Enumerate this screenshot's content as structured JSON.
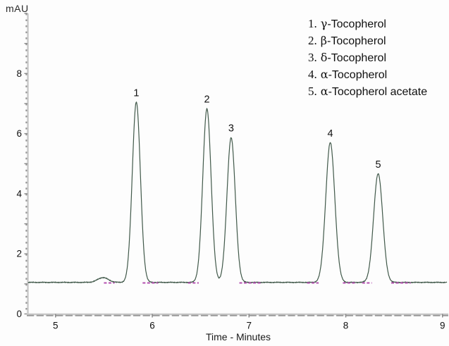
{
  "figure": {
    "y_axis_title": "mAU",
    "x_axis_title": "Time - Minutes"
  },
  "chart_data": {
    "type": "line",
    "chart_kind": "hplc-chromatogram",
    "title": "",
    "xlabel": "Time - Minutes",
    "ylabel": "mAU",
    "xlim": [
      4.71,
      9.06
    ],
    "ylim": [
      0,
      10
    ],
    "x_ticks": [
      5,
      6,
      7,
      8,
      9
    ],
    "x_minor_tick_step": 0.1,
    "y_ticks": [
      0,
      2,
      4,
      6,
      8
    ],
    "y_minor_tick_step": 0.2,
    "grid": "off",
    "legend_position": "top-right",
    "baseline_mau": 1.05,
    "noise_amplitude_mau": 0.02,
    "colors": {
      "trace": "#41594a",
      "integration_mark": "#b44fb0",
      "axis_line": "#c9c9c9",
      "axis_dash": "#9a9a9a",
      "major_tick": "#8a8a8a",
      "text": "#111111"
    },
    "peaks": [
      {
        "number": "1",
        "compound": "γ-Tocopherol",
        "retention_time_min": 5.835,
        "apex_mau": 7.05,
        "sigma_min": 0.042
      },
      {
        "number": "2",
        "compound": "β-Tocopherol",
        "retention_time_min": 6.565,
        "apex_mau": 6.83,
        "sigma_min": 0.043
      },
      {
        "number": "3",
        "compound": "δ-Tocopherol",
        "retention_time_min": 6.815,
        "apex_mau": 5.87,
        "sigma_min": 0.043
      },
      {
        "number": "4",
        "compound": "α-Tocopherol",
        "retention_time_min": 7.84,
        "apex_mau": 5.7,
        "sigma_min": 0.047
      },
      {
        "number": "5",
        "compound": "α-Tocopherol acetate",
        "retention_time_min": 8.335,
        "apex_mau": 4.67,
        "sigma_min": 0.047
      }
    ],
    "unlabeled_bump": {
      "retention_time_min": 5.49,
      "apex_mau": 1.21,
      "sigma_min": 0.055
    },
    "integration_marks_min": [
      [
        5.5,
        5.61
      ],
      [
        5.9,
        6.06
      ],
      [
        6.37,
        6.48
      ],
      [
        6.9,
        7.12
      ],
      [
        7.6,
        7.72
      ],
      [
        7.97,
        8.1
      ],
      [
        8.17,
        8.27
      ],
      [
        8.47,
        8.67
      ]
    ],
    "legend": [
      {
        "number": "1.",
        "greek": "γ",
        "rest": "-Tocopherol"
      },
      {
        "number": "2.",
        "greek": "β",
        "rest": "-Tocopherol"
      },
      {
        "number": "3.",
        "greek": "δ",
        "rest": "-Tocopherol"
      },
      {
        "number": "4.",
        "greek": "α",
        "rest": "-Tocopherol"
      },
      {
        "number": "5.",
        "greek": "α",
        "rest": "-Tocopherol acetate"
      }
    ]
  }
}
